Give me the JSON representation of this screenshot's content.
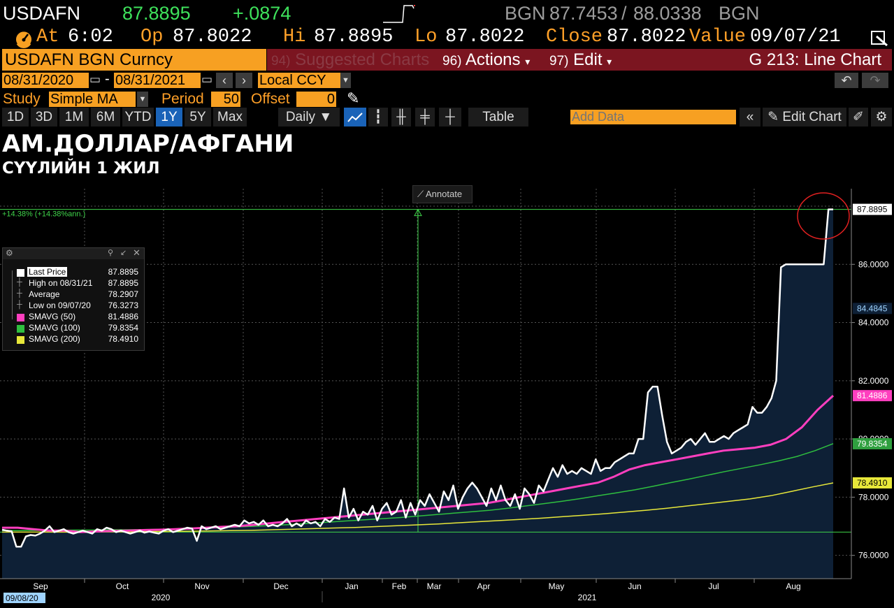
{
  "quote": {
    "ticker": "USDAFN",
    "last": "87.8895",
    "change": "+.0874",
    "source_left": "BGN",
    "bid": "87.7453",
    "separator": "/",
    "ask": "88.0338",
    "source_right": "BGN"
  },
  "quote2": {
    "at_label": "At",
    "time": "6:02",
    "op_label": "Op",
    "op": "87.8022",
    "hi_label": "Hi",
    "hi": "87.8895",
    "lo_label": "Lo",
    "lo": "87.8022",
    "close_label": "Close",
    "close": "87.8022",
    "value_label": "Value",
    "value_date": "09/07/21"
  },
  "menu": {
    "security": "USDAFN BGN Curncy",
    "suggested_num": "94)",
    "suggested": "Suggested Charts",
    "actions_num": "96)",
    "actions": "Actions",
    "edit_num": "97)",
    "edit": "Edit",
    "page_title": "G 213: Line Chart"
  },
  "dates": {
    "start": "08/31/2020",
    "dash": "-",
    "end": "08/31/2021",
    "currency": "Local CCY"
  },
  "study": {
    "study_label": "Study",
    "study_value": "Simple MA",
    "period_label": "Period",
    "period_value": "50",
    "offset_label": "Offset",
    "offset_value": "0"
  },
  "toolbar": {
    "ranges": [
      "1D",
      "3D",
      "1M",
      "6M",
      "YTD",
      "1Y",
      "5Y",
      "Max"
    ],
    "frequency": "Daily",
    "table": "Table",
    "add_data_placeholder": "Add Data",
    "edit_chart": "Edit Chart"
  },
  "titles": {
    "main": "АМ.ДОЛЛАР/АФГАНИ",
    "sub": "СҮҮЛИЙН 1 ЖИЛ"
  },
  "annotate": "Annotate",
  "legend": {
    "rows": [
      {
        "label": "Last Price",
        "value": "87.8895",
        "color": "#ffffff"
      },
      {
        "label": "High on 08/31/21",
        "value": "87.8895",
        "color": ""
      },
      {
        "label": "Average",
        "value": "78.2907",
        "color": ""
      },
      {
        "label": "Low on 09/07/20",
        "value": "76.3273",
        "color": ""
      },
      {
        "label": "SMAVG (50)",
        "value": "81.4886",
        "color": "#ff3fbf"
      },
      {
        "label": "SMAVG (100)",
        "value": "79.8354",
        "color": "#2fbf3f"
      },
      {
        "label": "SMAVG (200)",
        "value": "78.4910",
        "color": "#e8e83a"
      }
    ]
  },
  "colors": {
    "price": "#ffffff",
    "area": "#0e2036",
    "sma50": "#ff3fbf",
    "sma100": "#2fbf3f",
    "sma200": "#e8e83a",
    "accent_orange": "#f7a022",
    "accent_red": "#7b1520"
  },
  "chart_data": {
    "type": "line",
    "title": "АМ.ДОЛЛАР/АФГАНИ",
    "subtitle": "СҮҮЛИЙН 1 ЖИЛ",
    "ylim": [
      75.2,
      88.6
    ],
    "yticks": [
      "76.0000",
      "78.0000",
      "80.0000",
      "82.0000",
      "84.0000",
      "86.0000"
    ],
    "ytick_values": [
      76,
      78,
      80,
      82,
      84,
      86
    ],
    "xticks": [
      "Sep",
      "Oct",
      "Nov",
      "Dec",
      "Jan",
      "Feb",
      "Mar",
      "Apr",
      "May",
      "Jun",
      "Jul",
      "Aug"
    ],
    "year_labels": [
      "2020",
      "2021"
    ],
    "start_label": "09/08/20",
    "change_label": "+14.38% (+14.38%ann.)",
    "price_tags": [
      {
        "value": "87.8895",
        "series": "Last Price"
      },
      {
        "value": "84.4845",
        "series": "Last Price"
      },
      {
        "value": "81.4886",
        "series": "SMAVG (50)"
      },
      {
        "value": "79.8354",
        "series": "SMAVG (100)"
      },
      {
        "value": "78.4910",
        "series": "SMAVG (200)"
      }
    ],
    "reference_lines": [
      87.8895,
      76.8
    ],
    "series": [
      {
        "name": "Last Price",
        "values": [
          76.88,
          76.85,
          76.83,
          76.3,
          76.3,
          76.65,
          76.7,
          76.68,
          76.75,
          76.85,
          77.0,
          76.8,
          76.85,
          76.9,
          76.8,
          76.75,
          76.8,
          76.85,
          76.8,
          76.75,
          76.9,
          76.85,
          76.95,
          76.9,
          76.8,
          76.85,
          76.8,
          76.75,
          76.8,
          76.85,
          76.78,
          76.82,
          76.78,
          76.75,
          76.85,
          76.9,
          76.8,
          76.85,
          76.9,
          76.95,
          76.92,
          76.5,
          77.0,
          76.9,
          76.95,
          77.0,
          76.9,
          76.95,
          77.0,
          77.05,
          77.0,
          77.2,
          77.1,
          77.15,
          77.05,
          77.2,
          77.0,
          77.05,
          77.0,
          77.1,
          77.25,
          77.0,
          77.1,
          77.0,
          77.2,
          77.1,
          77.15,
          77.0,
          77.25,
          77.15,
          77.3,
          77.25,
          78.3,
          77.3,
          77.6,
          77.2,
          77.5,
          77.4,
          77.7,
          77.2,
          77.6,
          77.8,
          77.4,
          77.5,
          77.9,
          77.3,
          77.8,
          77.4,
          77.9,
          77.7,
          78.1,
          77.8,
          77.5,
          78.2,
          77.9,
          78.4,
          77.6,
          78.0,
          78.3,
          78.5,
          78.3,
          78.0,
          77.7,
          78.3,
          77.9,
          78.4,
          77.9,
          77.7,
          78.1,
          77.6,
          78.3,
          78.1,
          77.8,
          78.4,
          78.2,
          78.6,
          79.0,
          78.7,
          79.1,
          78.8,
          78.9,
          78.8,
          79.0,
          78.9,
          78.8,
          79.3,
          78.9,
          79.0,
          79.0,
          79.2,
          79.3,
          79.4,
          79.5,
          79.5,
          80.0,
          80.0,
          81.6,
          81.8,
          81.8,
          80.8,
          79.9,
          79.5,
          79.6,
          79.7,
          79.9,
          80.0,
          79.8,
          80.0,
          80.2,
          79.9,
          79.9,
          80.0,
          80.1,
          80.0,
          80.2,
          80.3,
          80.4,
          80.5,
          81.1,
          80.9,
          80.9,
          81.1,
          81.4,
          82.0,
          85.9,
          86.0,
          86.0,
          86.0,
          86.0,
          86.0,
          86.0,
          86.0,
          86.0,
          86.0,
          87.89,
          87.89
        ]
      },
      {
        "name": "SMAVG (50)",
        "values": [
          76.95,
          76.95,
          76.9,
          76.85,
          76.85,
          76.8,
          76.82,
          76.84,
          76.85,
          76.87,
          76.88,
          76.9,
          76.92,
          76.95,
          76.98,
          77.0,
          77.05,
          77.1,
          77.15,
          77.2,
          77.25,
          77.3,
          77.35,
          77.4,
          77.45,
          77.5,
          77.55,
          77.6,
          77.65,
          77.7,
          77.75,
          77.8,
          77.9,
          78.0,
          78.1,
          78.2,
          78.3,
          78.4,
          78.5,
          78.7,
          78.95,
          79.1,
          79.2,
          79.3,
          79.4,
          79.5,
          79.6,
          79.65,
          79.7,
          79.8,
          80.0,
          80.4,
          81.0,
          81.49
        ]
      },
      {
        "name": "SMAVG (100)",
        "values": [
          76.85,
          76.85,
          76.86,
          76.86,
          76.87,
          76.87,
          76.88,
          76.88,
          76.89,
          76.9,
          76.92,
          76.94,
          76.96,
          76.98,
          77.0,
          77.03,
          77.06,
          77.1,
          77.14,
          77.18,
          77.22,
          77.26,
          77.3,
          77.35,
          77.4,
          77.45,
          77.5,
          77.55,
          77.62,
          77.7,
          77.78,
          77.86,
          77.95,
          78.05,
          78.15,
          78.25,
          78.37,
          78.5,
          78.62,
          78.75,
          78.88,
          79.0,
          79.12,
          79.25,
          79.4,
          79.6,
          79.84
        ]
      },
      {
        "name": "SMAVG (200)",
        "values": [
          76.8,
          76.8,
          76.8,
          76.8,
          76.8,
          76.81,
          76.81,
          76.82,
          76.82,
          76.83,
          76.84,
          76.85,
          76.86,
          76.88,
          76.9,
          76.92,
          76.94,
          76.96,
          76.99,
          77.02,
          77.05,
          77.08,
          77.12,
          77.16,
          77.2,
          77.24,
          77.28,
          77.33,
          77.38,
          77.43,
          77.49,
          77.55,
          77.62,
          77.7,
          77.78,
          77.86,
          77.94,
          78.05,
          78.2,
          78.35,
          78.49
        ]
      }
    ]
  }
}
